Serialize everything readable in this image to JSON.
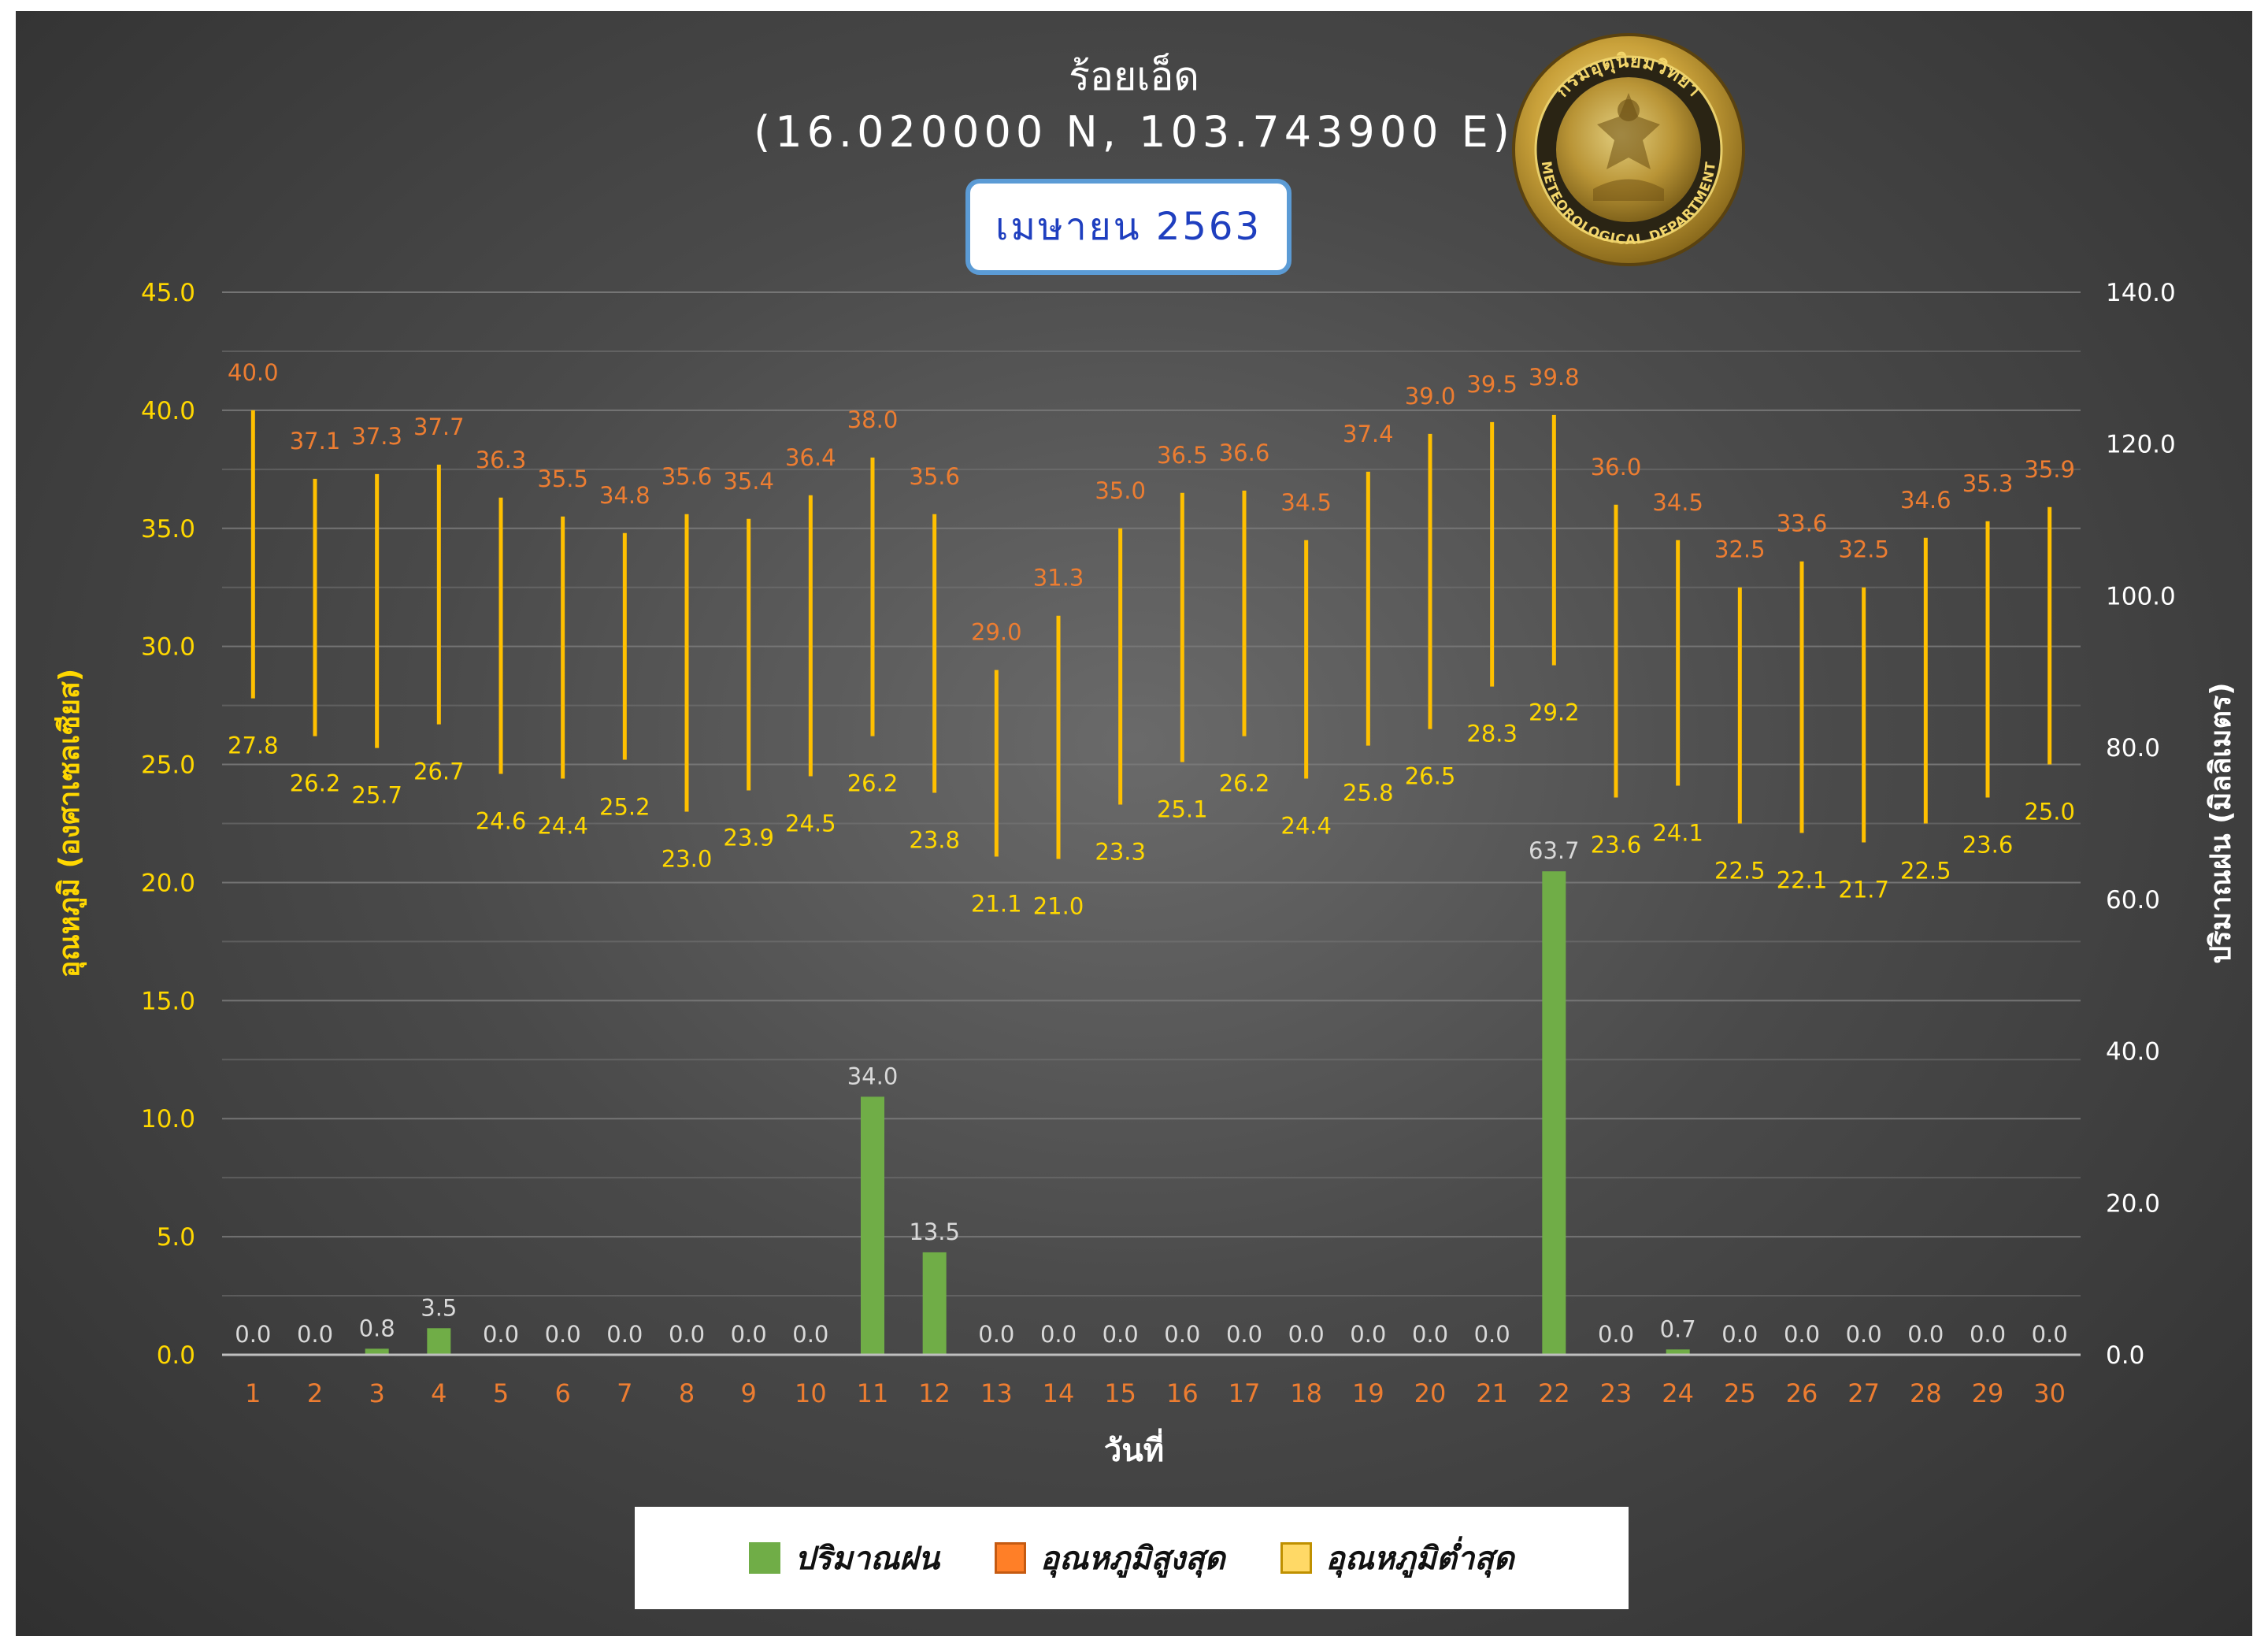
{
  "header": {
    "station": "ร้อยเอ็ด",
    "coords": "(16.020000 N, 103.743900 E)",
    "month": "เมษายน 2563",
    "logo_text_top": "กรมอุตุนิยมวิทยา",
    "logo_text_bottom": "METEOROLOGICAL DEPARTMENT"
  },
  "legend": {
    "rain": "ปริมาณฝน",
    "tmax": "อุณหภูมิสูงสุด",
    "tmin": "อุณหภูมิต่ำสุด"
  },
  "colors": {
    "rain": "#70ad47",
    "tmax_label": "#ed7d31",
    "tmin_label": "#ffd700",
    "range_line": "#ffc000",
    "left_axis": "#ffd700",
    "right_axis": "#ffffff",
    "x_axis": "#ed7d31",
    "legend_tmax": "#ff7f27",
    "legend_tmin": "#ffd966"
  },
  "chart_data": {
    "type": "bar",
    "xlabel": "วันที่",
    "ylabel_left": "อุณหภูมิ (องศาเซลเซียส)",
    "ylabel_right": "ปริมาณฝน (มิลลิเมตร)",
    "ylim_left": [
      0,
      45
    ],
    "ylim_right": [
      0,
      140
    ],
    "yticks_left": [
      "0.0",
      "5.0",
      "10.0",
      "15.0",
      "20.0",
      "25.0",
      "30.0",
      "35.0",
      "40.0",
      "45.0"
    ],
    "yticks_right": [
      "0.0",
      "20.0",
      "40.0",
      "60.0",
      "80.0",
      "100.0",
      "120.0",
      "140.0"
    ],
    "grid": true,
    "legend_position": "bottom",
    "categories": [
      "1",
      "2",
      "3",
      "4",
      "5",
      "6",
      "7",
      "8",
      "9",
      "10",
      "11",
      "12",
      "13",
      "14",
      "15",
      "16",
      "17",
      "18",
      "19",
      "20",
      "21",
      "22",
      "23",
      "24",
      "25",
      "26",
      "27",
      "28",
      "29",
      "30"
    ],
    "series": [
      {
        "name": "ปริมาณฝน",
        "axis": "right",
        "kind": "bar",
        "values": [
          0.0,
          0.0,
          0.8,
          3.5,
          0.0,
          0.0,
          0.0,
          0.0,
          0.0,
          0.0,
          34.0,
          13.5,
          0.0,
          0.0,
          0.0,
          0.0,
          0.0,
          0.0,
          0.0,
          0.0,
          0.0,
          63.7,
          0.0,
          0.7,
          0.0,
          0.0,
          0.0,
          0.0,
          0.0,
          0.0
        ],
        "labels": [
          "0.0",
          "0.0",
          "0.8",
          "3.5",
          "0.0",
          "0.0",
          "0.0",
          "0.0",
          "0.0",
          "0.0",
          "34.0",
          "13.5",
          "0.0",
          "0.0",
          "0.0",
          "0.0",
          "0.0",
          "0.0",
          "0.0",
          "0.0",
          "0.0",
          "63.7",
          "0.0",
          "0.7",
          "0.0",
          "0.0",
          "0.0",
          "0.0",
          "0.0",
          "0.0"
        ]
      },
      {
        "name": "อุณหภูมิสูงสุด",
        "axis": "left",
        "kind": "range-high",
        "values": [
          40.0,
          37.1,
          37.3,
          37.7,
          36.3,
          35.5,
          34.8,
          35.6,
          35.4,
          36.4,
          38.0,
          35.6,
          29.0,
          31.3,
          35.0,
          36.5,
          36.6,
          34.5,
          37.4,
          39.0,
          39.5,
          39.8,
          36.0,
          34.5,
          32.5,
          33.6,
          32.5,
          34.6,
          35.3,
          35.9
        ],
        "labels": [
          "40.0",
          "37.1",
          "37.3",
          "37.7",
          "36.3",
          "35.5",
          "34.8",
          "35.6",
          "35.4",
          "36.4",
          "38.0",
          "35.6",
          "29.0",
          "31.3",
          "35.0",
          "36.5",
          "36.6",
          "34.5",
          "37.4",
          "39.0",
          "39.5",
          "39.8",
          "36.0",
          "34.5",
          "32.5",
          "33.6",
          "32.5",
          "34.6",
          "35.3",
          "35.9"
        ]
      },
      {
        "name": "อุณหภูมิต่ำสุด",
        "axis": "left",
        "kind": "range-low",
        "values": [
          27.8,
          26.2,
          25.7,
          26.7,
          24.6,
          24.4,
          25.2,
          23.0,
          23.9,
          24.5,
          26.2,
          23.8,
          21.1,
          21.0,
          23.3,
          25.1,
          26.2,
          24.4,
          25.8,
          26.5,
          28.3,
          29.2,
          23.6,
          24.1,
          22.5,
          22.1,
          21.7,
          22.5,
          23.6,
          25.0
        ],
        "labels": [
          "27.8",
          "26.2",
          "25.7",
          "26.7",
          "24.6",
          "24.4",
          "25.2",
          "23.0",
          "23.9",
          "24.5",
          "26.2",
          "23.8",
          "21.1",
          "21.0",
          "23.3",
          "25.1",
          "26.2",
          "24.4",
          "25.8",
          "26.5",
          "28.3",
          "29.2",
          "23.6",
          "24.1",
          "22.5",
          "22.1",
          "21.7",
          "22.5",
          "23.6",
          "25.0"
        ]
      }
    ]
  }
}
